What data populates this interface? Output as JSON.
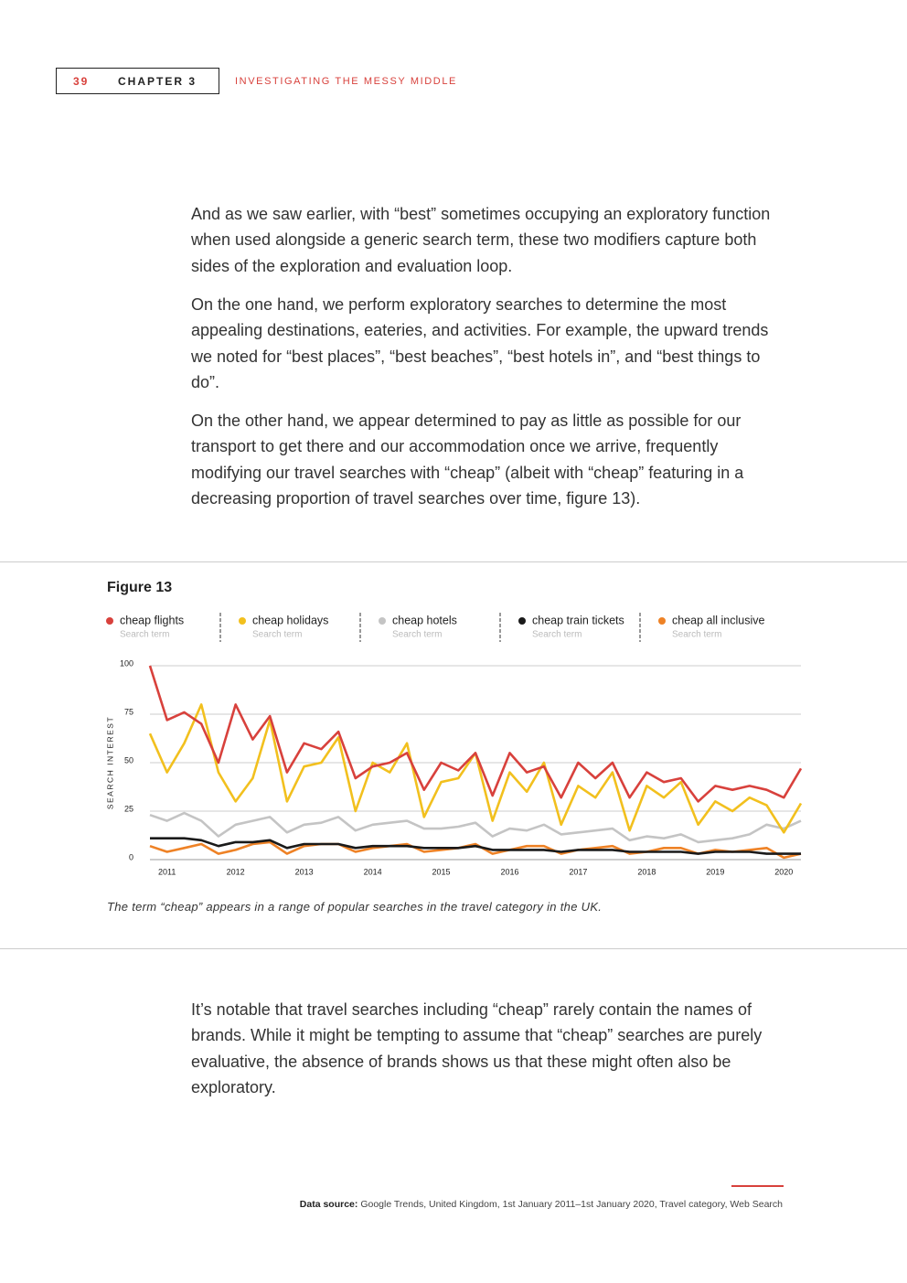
{
  "header": {
    "page_number": "39",
    "chapter": "CHAPTER 3",
    "section": "INVESTIGATING THE MESSY MIDDLE"
  },
  "paragraphs": [
    "And as we saw earlier, with “best” sometimes occupying an exploratory function when used alongside a generic search term, these two modifiers capture both sides of the exploration and evaluation loop.",
    "On the one hand, we perform exploratory searches to determine the most appealing destinations, eateries, and activities. For example, the upward trends we noted for “best places”, “best beaches”, “best hotels in”, and “best things to do”.",
    "On the other hand, we appear determined to pay as little as possible for our transport to get there and our accommodation once we arrive, frequently modifying our travel searches with “cheap” (albeit with “cheap” featuring in a decreasing proportion of travel searches over time, figure 13).",
    "It’s notable that travel searches including “cheap” rarely contain the names of brands. While it might be tempting to assume that “cheap” searches are purely evaluative, the absence of brands shows us that these might often also be exploratory."
  ],
  "chart_data": {
    "type": "line",
    "title": "Figure 13",
    "legend_sublabel": "Search term",
    "ylabel": "SEARCH INTEREST",
    "caption": "The term “cheap” appears in a range of popular searches in the travel category in the UK.",
    "x": [
      2010.75,
      2011,
      2011.25,
      2011.5,
      2011.75,
      2012,
      2012.25,
      2012.5,
      2012.75,
      2013,
      2013.25,
      2013.5,
      2013.75,
      2014,
      2014.25,
      2014.5,
      2014.75,
      2015,
      2015.25,
      2015.5,
      2015.75,
      2016,
      2016.25,
      2016.5,
      2016.75,
      2017,
      2017.25,
      2017.5,
      2017.75,
      2018,
      2018.25,
      2018.5,
      2018.75,
      2019,
      2019.25,
      2019.5,
      2019.75,
      2020,
      2020.25
    ],
    "xlim": [
      2010.75,
      2020.25
    ],
    "xticks": [
      2011,
      2012,
      2013,
      2014,
      2015,
      2016,
      2017,
      2018,
      2019,
      2020
    ],
    "ylim": [
      0,
      100
    ],
    "yticks": [
      0,
      25,
      50,
      75,
      100
    ],
    "grid": true,
    "series": [
      {
        "name": "cheap flights",
        "color": "#d8413c",
        "values": [
          100,
          72,
          76,
          70,
          50,
          80,
          62,
          74,
          45,
          60,
          57,
          66,
          42,
          48,
          50,
          55,
          36,
          50,
          46,
          55,
          33,
          55,
          45,
          48,
          32,
          50,
          42,
          50,
          32,
          45,
          40,
          42,
          30,
          38,
          36,
          38,
          36,
          32,
          47
        ]
      },
      {
        "name": "cheap holidays",
        "color": "#f2c01e",
        "values": [
          65,
          45,
          60,
          80,
          45,
          30,
          42,
          72,
          30,
          48,
          50,
          63,
          25,
          50,
          45,
          60,
          22,
          40,
          42,
          55,
          20,
          45,
          35,
          50,
          18,
          38,
          32,
          45,
          15,
          38,
          32,
          40,
          18,
          30,
          25,
          32,
          28,
          14,
          29
        ]
      },
      {
        "name": "cheap hotels",
        "color": "#c4c4c4",
        "values": [
          23,
          20,
          24,
          20,
          12,
          18,
          20,
          22,
          14,
          18,
          19,
          22,
          15,
          18,
          19,
          20,
          16,
          16,
          17,
          19,
          12,
          16,
          15,
          18,
          13,
          14,
          15,
          16,
          10,
          12,
          11,
          13,
          9,
          10,
          11,
          13,
          18,
          16,
          20
        ]
      },
      {
        "name": "cheap train tickets",
        "color": "#1a1a1a",
        "values": [
          11,
          11,
          11,
          10,
          7,
          9,
          9,
          10,
          6,
          8,
          8,
          8,
          6,
          7,
          7,
          7,
          6,
          6,
          6,
          7,
          5,
          5,
          5,
          5,
          4,
          5,
          5,
          5,
          4,
          4,
          4,
          4,
          3,
          4,
          4,
          4,
          3,
          3,
          3
        ]
      },
      {
        "name": "cheap all inclusive",
        "color": "#ee8226",
        "values": [
          7,
          4,
          6,
          8,
          3,
          5,
          8,
          9,
          3,
          7,
          8,
          8,
          4,
          6,
          7,
          8,
          4,
          5,
          6,
          8,
          3,
          5,
          7,
          7,
          3,
          5,
          6,
          7,
          3,
          4,
          6,
          6,
          3,
          5,
          4,
          5,
          6,
          1,
          3
        ]
      }
    ]
  },
  "source": {
    "label": "Data source:",
    "text": "Google Trends, United Kingdom, 1st January 2011–1st January 2020, Travel category, Web Search"
  }
}
